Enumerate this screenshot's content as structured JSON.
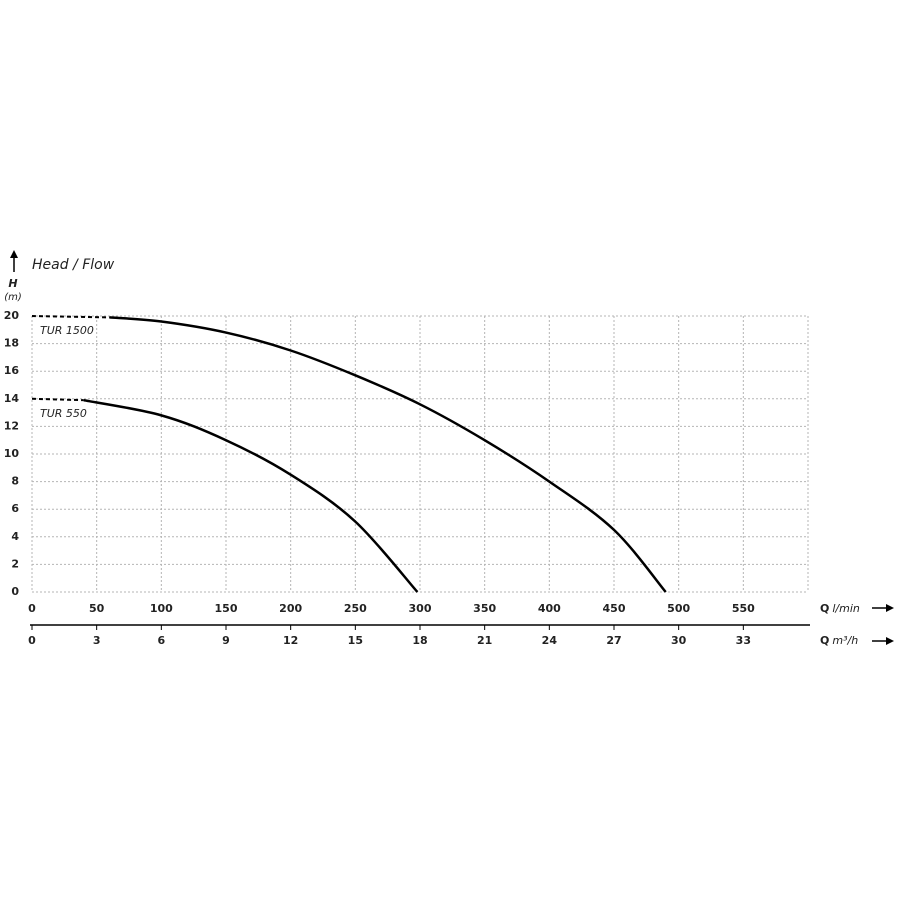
{
  "chart_data": {
    "type": "line",
    "title": "Head / Flow",
    "y_label": "H",
    "y_unit": "(m)",
    "x_label": "Q",
    "x_unit": "l/min",
    "x2_label": "Q",
    "x2_unit": "m³/h",
    "xlim": [
      0,
      600
    ],
    "xticks": [
      0,
      50,
      100,
      150,
      200,
      250,
      300,
      350,
      400,
      450,
      500,
      550
    ],
    "x2lim": [
      0,
      36
    ],
    "x2ticks": [
      0,
      3,
      6,
      9,
      12,
      15,
      18,
      21,
      24,
      27,
      30,
      33
    ],
    "ylim": [
      0,
      20
    ],
    "yticks": [
      0,
      2,
      4,
      6,
      8,
      10,
      12,
      14,
      16,
      18,
      20
    ],
    "grid": true,
    "series": [
      {
        "name": "TUR 1500",
        "color": "#000000",
        "x": [
          0,
          60,
          100,
          150,
          200,
          250,
          300,
          350,
          400,
          450,
          490
        ],
        "values": [
          20,
          19.9,
          19.6,
          18.8,
          17.5,
          15.7,
          13.6,
          11,
          8,
          4.5,
          0
        ]
      },
      {
        "name": "TUR 550",
        "color": "#000000",
        "x": [
          0,
          40,
          100,
          150,
          200,
          250,
          298
        ],
        "values": [
          14,
          13.9,
          12.8,
          11,
          8.5,
          5.1,
          0
        ]
      }
    ]
  }
}
